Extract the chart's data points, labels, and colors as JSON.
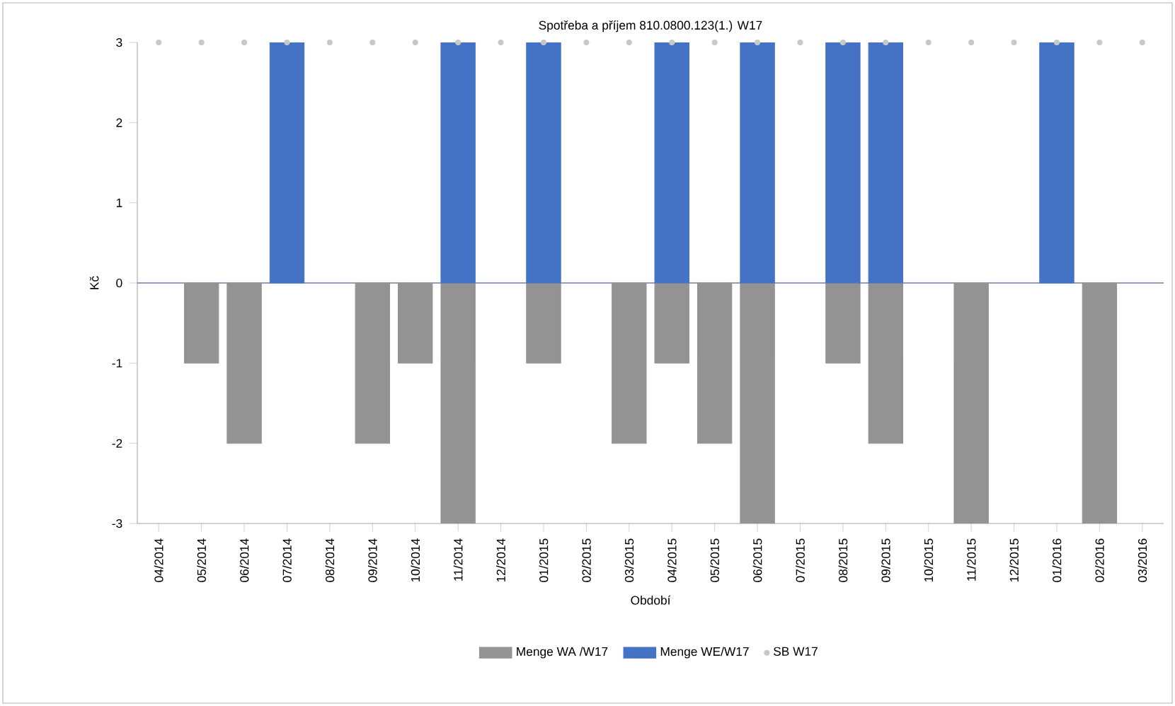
{
  "chart_data": {
    "type": "bar",
    "title": "Spotřeba a příjem 810.0800.123(1.) W17",
    "xlabel": "Období",
    "ylabel": "Kč",
    "categories": [
      "04/2014",
      "05/2014",
      "06/2014",
      "07/2014",
      "08/2014",
      "09/2014",
      "10/2014",
      "11/2014",
      "12/2014",
      "01/2015",
      "02/2015",
      "03/2015",
      "04/2015",
      "05/2015",
      "06/2015",
      "07/2015",
      "08/2015",
      "09/2015",
      "10/2015",
      "11/2015",
      "12/2015",
      "01/2016",
      "02/2016",
      "03/2016"
    ],
    "series": [
      {
        "name": "Menge WA /W17",
        "color": "#939393",
        "values": [
          null,
          -1,
          -2,
          null,
          null,
          -2,
          -1,
          -3,
          null,
          -1,
          null,
          -2,
          -1,
          -2,
          -3,
          null,
          -1,
          -2,
          null,
          -3,
          null,
          null,
          -3,
          null
        ]
      },
      {
        "name": "Menge WE/W17",
        "color": "#4472c4",
        "values": [
          null,
          null,
          null,
          3,
          null,
          null,
          null,
          3,
          null,
          3,
          null,
          null,
          3,
          null,
          3,
          null,
          3,
          3,
          null,
          null,
          null,
          3,
          null,
          null
        ]
      },
      {
        "name": "SB W17",
        "type": "scatter",
        "color": "#c8c8c8",
        "values": [
          3,
          3,
          3,
          3,
          3,
          3,
          3,
          3,
          3,
          3,
          3,
          3,
          3,
          3,
          3,
          3,
          3,
          3,
          3,
          3,
          3,
          3,
          3,
          3
        ]
      }
    ],
    "ref_lines": [
      {
        "axis": "y",
        "value": 0,
        "color": "#6f7fa8"
      }
    ],
    "ylim": [
      -3,
      3
    ],
    "yticks": [
      -3,
      -2,
      -1,
      0,
      1,
      2,
      3
    ],
    "grid": false,
    "legend": "bottom",
    "marker": "circle"
  }
}
